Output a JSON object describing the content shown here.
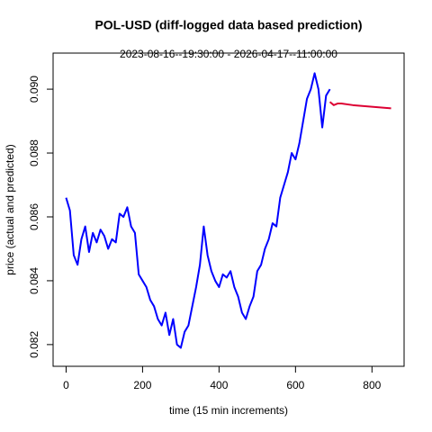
{
  "chart_data": {
    "type": "line",
    "title": "POL-USD (diff-logged data based prediction)",
    "subtitle": "2023-08-16--19:30:00  -  2026-04-17--11:00:00",
    "x_label": "time (15 min increments)",
    "y_label": "price (actual and predicted)",
    "xlim": [
      -34,
      884
    ],
    "xticks": [
      0,
      200,
      400,
      600,
      800
    ],
    "ylim": [
      0.08132,
      0.09113
    ],
    "yticks": [
      0.082,
      0.084,
      0.086,
      0.088,
      {
        "value": 0.09,
        "label": "0.090"
      }
    ],
    "series": [
      {
        "color": "#0000ff",
        "x": [
          0,
          10,
          20,
          30,
          40,
          50,
          60,
          70,
          80,
          90,
          100,
          110,
          120,
          130,
          140,
          150,
          160,
          170,
          180,
          190,
          200,
          210,
          220,
          230,
          240,
          250,
          260,
          270,
          280,
          290,
          300,
          310,
          320,
          330,
          340,
          350,
          360,
          370,
          380,
          390,
          400,
          410,
          420,
          430,
          440,
          450,
          460,
          470,
          480,
          490,
          500,
          510,
          520,
          530,
          540,
          550,
          560,
          570,
          580,
          590,
          600,
          610,
          620,
          630,
          640,
          650,
          660,
          670,
          680,
          690
        ],
        "values": [
          0.0866,
          0.0862,
          0.0848,
          0.0845,
          0.0853,
          0.0857,
          0.0849,
          0.0855,
          0.0852,
          0.0856,
          0.0854,
          0.085,
          0.0853,
          0.0852,
          0.0861,
          0.086,
          0.0863,
          0.0857,
          0.0855,
          0.0842,
          0.084,
          0.0838,
          0.0834,
          0.0832,
          0.0828,
          0.0826,
          0.083,
          0.0823,
          0.0828,
          0.082,
          0.0819,
          0.0824,
          0.0826,
          0.0832,
          0.0838,
          0.0845,
          0.0857,
          0.0848,
          0.0843,
          0.084,
          0.0838,
          0.0842,
          0.0841,
          0.0843,
          0.0838,
          0.0835,
          0.083,
          0.0828,
          0.0832,
          0.0835,
          0.0843,
          0.0845,
          0.085,
          0.0853,
          0.0858,
          0.0857,
          0.0866,
          0.087,
          0.0874,
          0.088,
          0.0878,
          0.0883,
          0.089,
          0.0897,
          0.09,
          0.0905,
          0.09,
          0.0888,
          0.0898,
          0.09
        ]
      },
      {
        "color": "#dd0033",
        "x": [
          690,
          700,
          710,
          720,
          750,
          800,
          850
        ],
        "values": [
          0.0896,
          0.0895,
          0.08955,
          0.08955,
          0.0895,
          0.08945,
          0.0894
        ]
      }
    ]
  }
}
